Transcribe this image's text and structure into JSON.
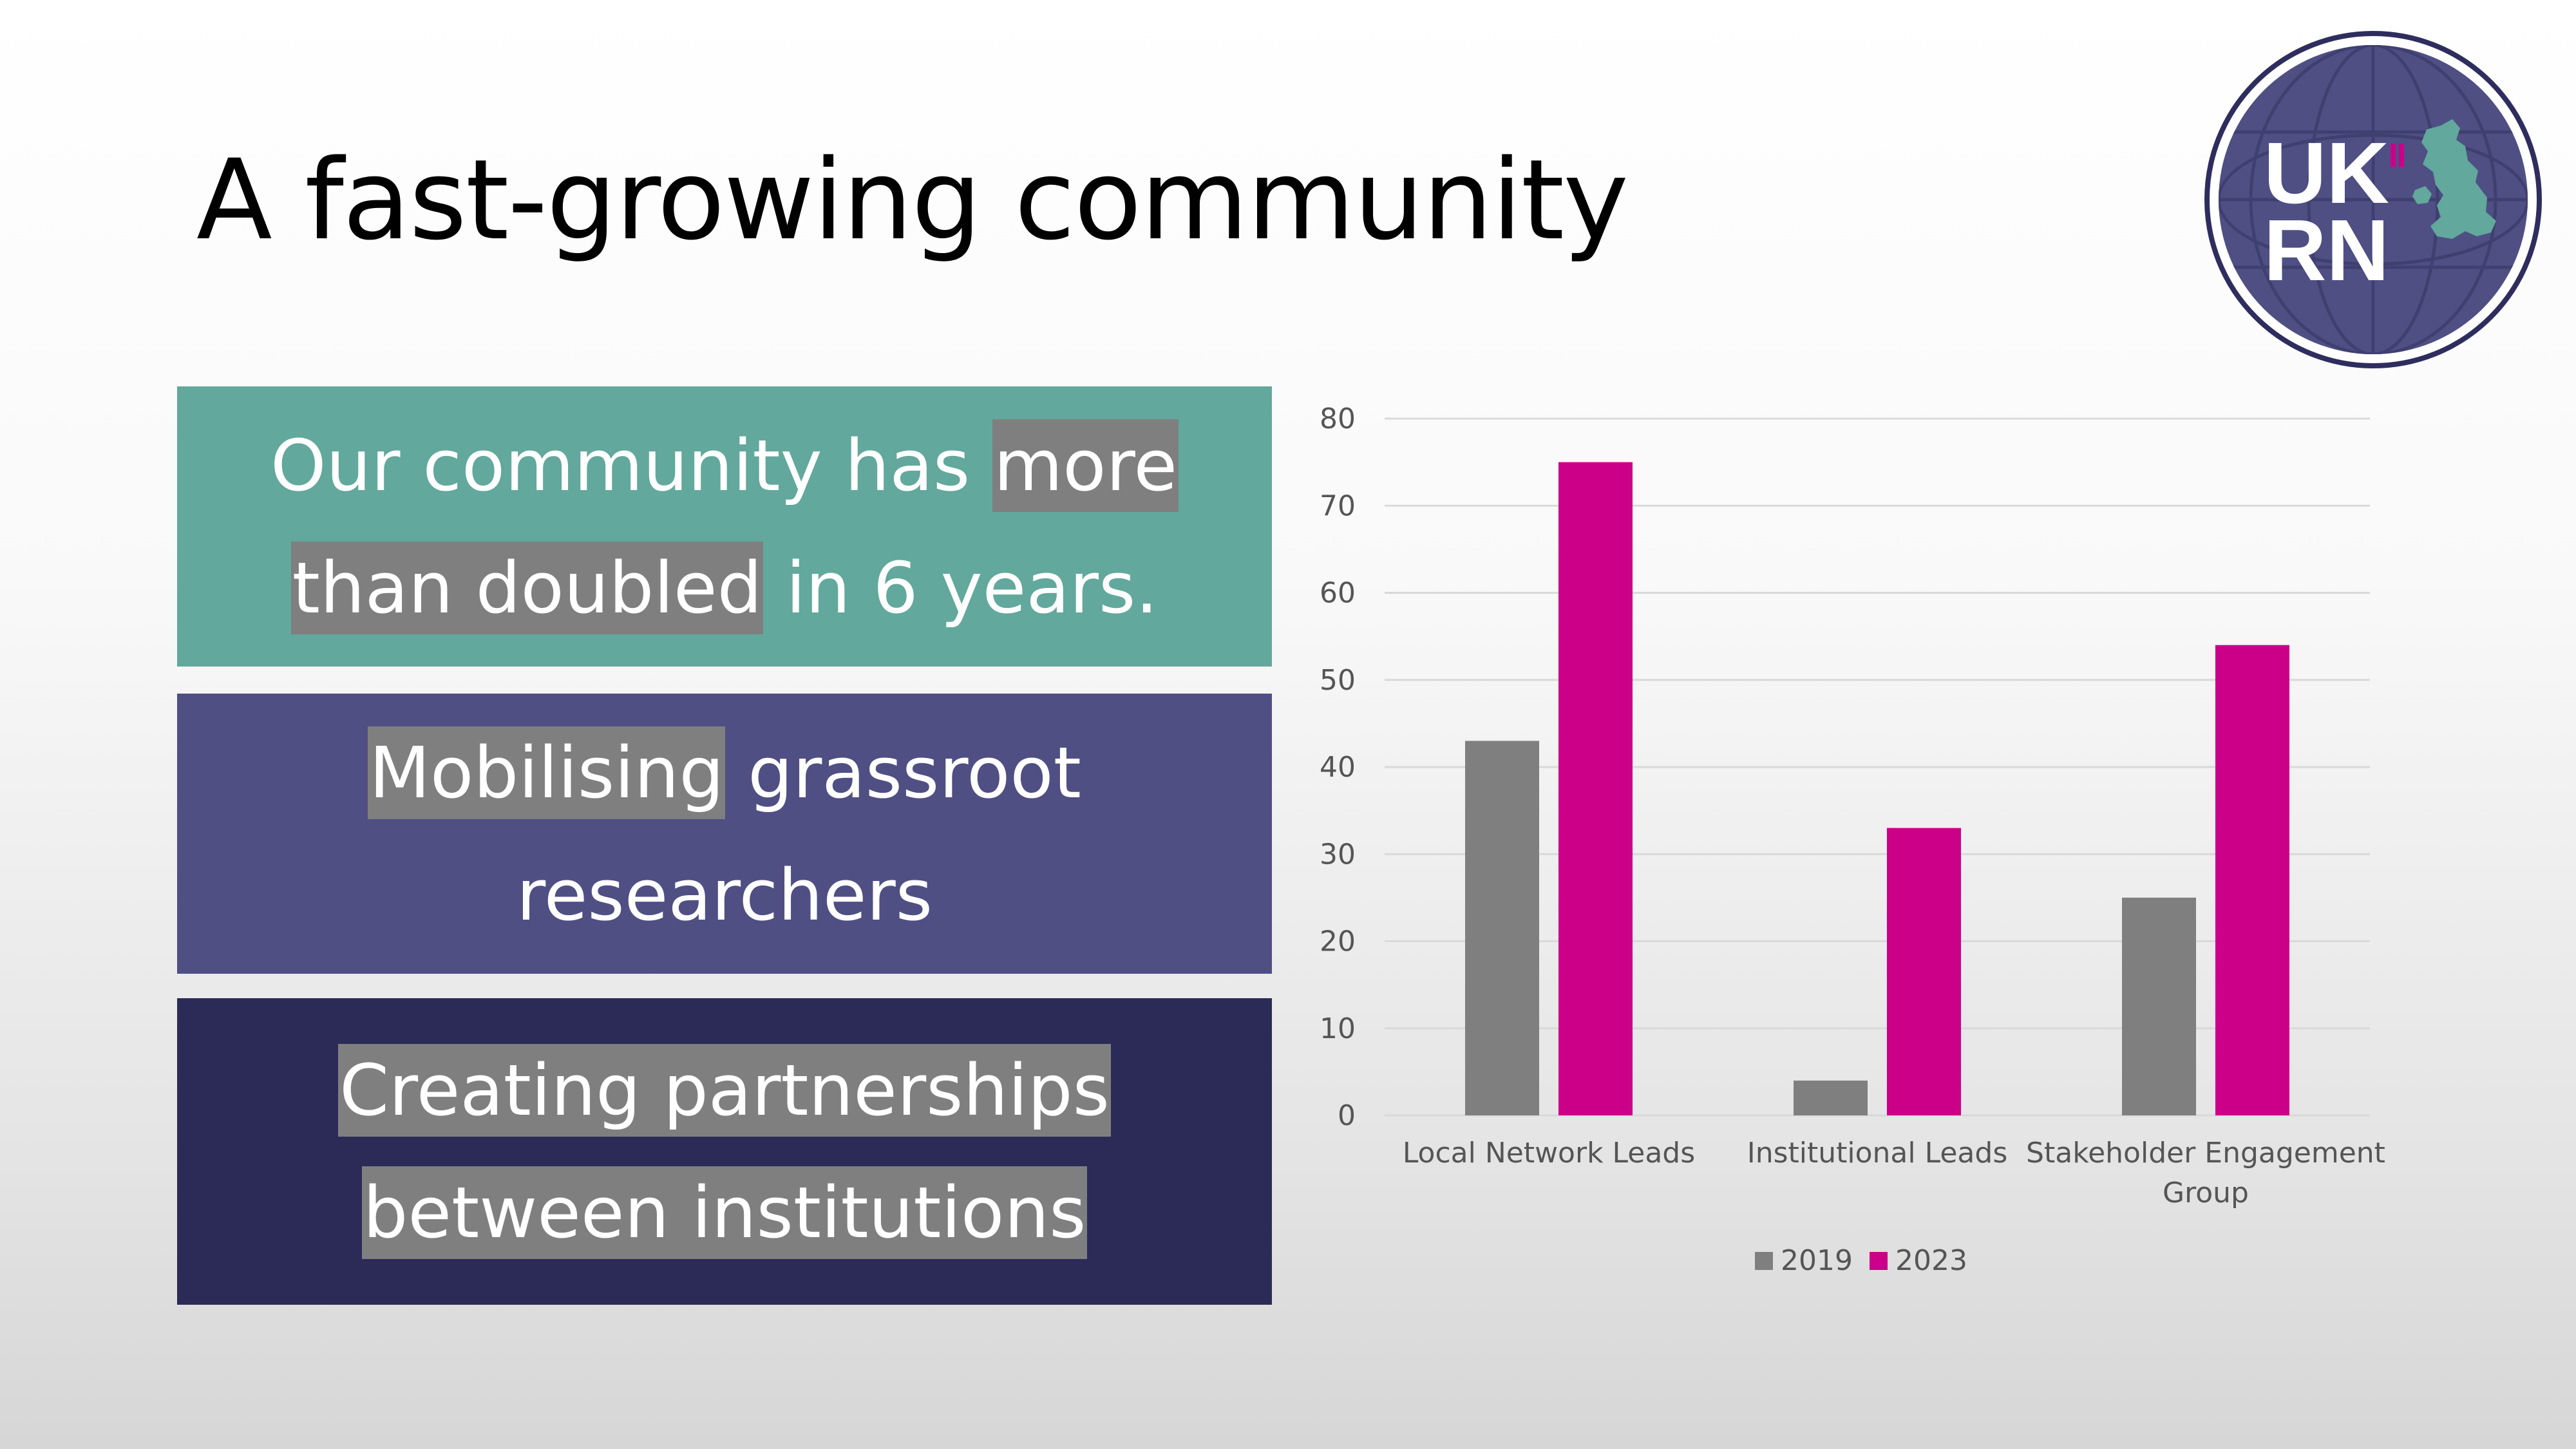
{
  "slide": {
    "title": "A fast-growing community"
  },
  "panels": {
    "p1": {
      "l1a": "Our community has ",
      "l1b": "more ",
      "l2a": "than doubled",
      "l2b": " in 6 years."
    },
    "p2": {
      "l1a": "Mobilising",
      "l1b": " grassroot",
      "l2": "researchers"
    },
    "p3": {
      "l1": "Creating partnerships ",
      "l2": "between institutions"
    }
  },
  "logo": {
    "line1": "UK",
    "line2": "RN"
  },
  "colors": {
    "panel1": "#62a89c",
    "panel2": "#4f4f84",
    "panel3": "#2c2b57",
    "highlight": "#7f7f7f"
  },
  "chart_data": {
    "type": "bar",
    "categories": [
      [
        "Local Network Leads"
      ],
      [
        "Institutional Leads"
      ],
      [
        "Stakeholder Engagement",
        "Group"
      ]
    ],
    "series": [
      {
        "name": "2019",
        "values": [
          43,
          4,
          25
        ],
        "color": "#7f7f7f"
      },
      {
        "name": "2023",
        "values": [
          75,
          33,
          54
        ],
        "color": "#cc0088"
      }
    ],
    "ylim": [
      0,
      80
    ],
    "yticks": [
      0,
      10,
      20,
      30,
      40,
      50,
      60,
      70,
      80
    ],
    "grid": true,
    "legend": "bottom"
  }
}
